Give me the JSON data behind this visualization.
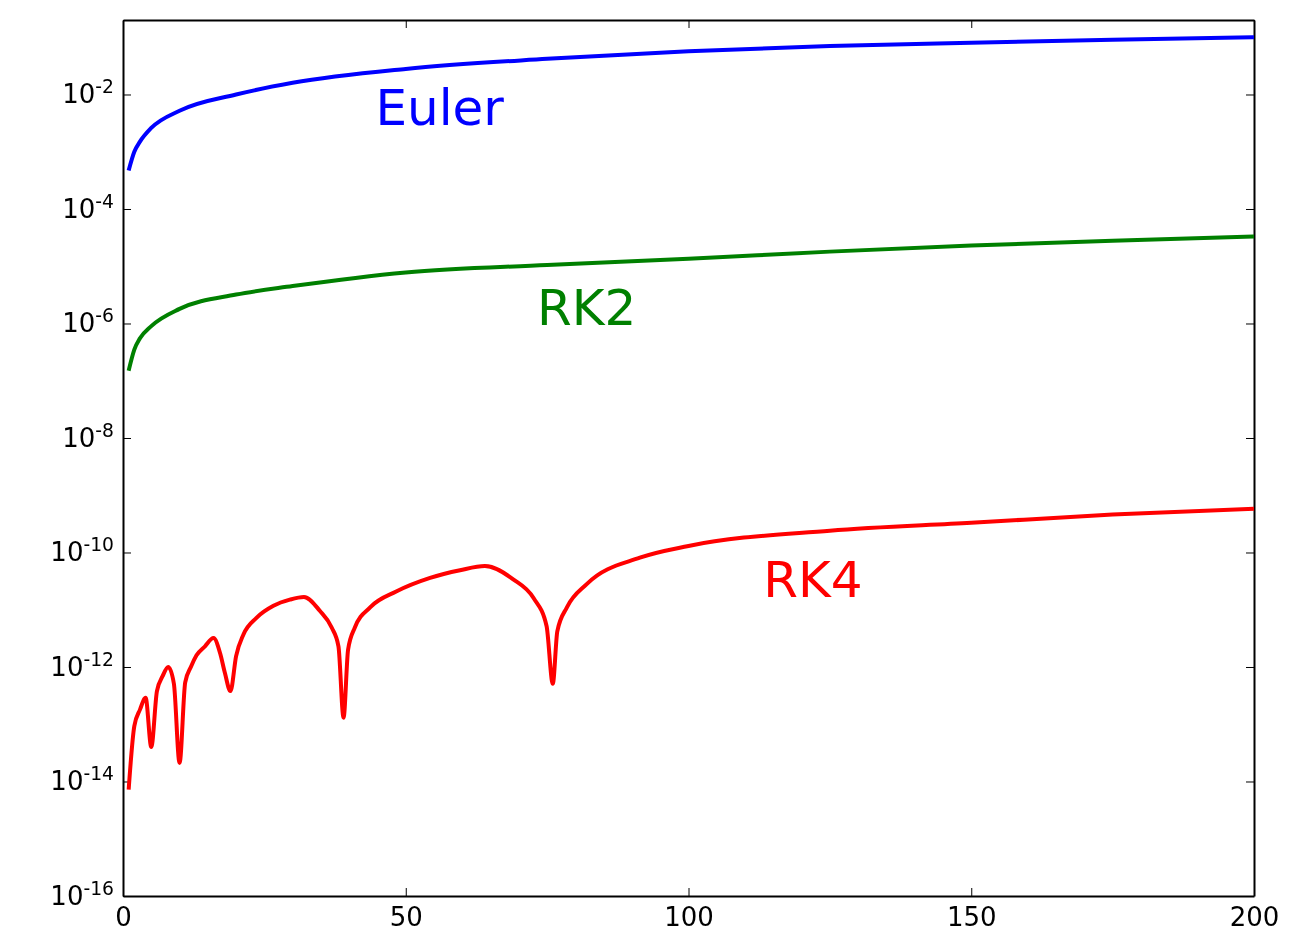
{
  "chart_data": {
    "type": "line",
    "log": "y",
    "xlim": [
      0,
      200
    ],
    "ylim": [
      1e-16,
      0.2
    ],
    "xticks": [
      0,
      50,
      100,
      150,
      200
    ],
    "yticks": [
      {
        "value": 1e-16,
        "label": "10$^{-16}$"
      },
      {
        "value": 1e-14,
        "label": "10$^{-14}$"
      },
      {
        "value": 1e-12,
        "label": "10$^{-12}$"
      },
      {
        "value": 1e-10,
        "label": "10$^{-10}$"
      },
      {
        "value": 1e-08,
        "label": "10$^{-8}$"
      },
      {
        "value": 1e-06,
        "label": "10$^{-6}$"
      },
      {
        "value": 0.0001,
        "label": "10$^{-4}$"
      },
      {
        "value": 0.01,
        "label": "10$^{-2}$"
      }
    ],
    "grid": false,
    "marker": "none",
    "line_style": "solid",
    "series": [
      {
        "name": "Euler",
        "color": "#0000ff",
        "x": [
          1,
          2,
          3,
          5,
          10,
          20,
          30,
          50,
          75,
          100,
          125,
          150,
          175,
          200
        ],
        "values": [
          0.00047,
          0.001,
          0.0015,
          0.0026,
          0.0052,
          0.01,
          0.016,
          0.028,
          0.042,
          0.057,
          0.07,
          0.08,
          0.09,
          0.1
        ]
      },
      {
        "name": "RK2",
        "color": "#008000",
        "x": [
          1,
          2,
          3,
          5,
          10,
          20,
          30,
          50,
          75,
          100,
          125,
          150,
          175,
          200
        ],
        "values": [
          1.5e-07,
          3.5e-07,
          5.5e-07,
          9e-07,
          1.8e-06,
          3.2e-06,
          4.5e-06,
          7.8e-06,
          1.05e-05,
          1.35e-05,
          1.8e-05,
          2.3e-05,
          2.8e-05,
          3.3e-05
        ]
      },
      {
        "name": "RK4",
        "color": "#ff0000",
        "x": [
          1,
          2,
          3,
          4,
          5,
          6,
          7,
          8,
          9,
          10,
          11,
          12,
          13,
          14.5,
          16,
          17.2,
          18,
          19,
          20,
          21.3,
          23.6,
          26.6,
          29.5,
          32,
          34.8,
          36.9,
          38.1,
          39,
          39.8,
          41,
          43.7,
          48.4,
          54.3,
          59.6,
          64,
          69,
          72.6,
          74.9,
          76,
          76.8,
          78.5,
          82,
          91.4,
          100,
          125,
          150,
          175,
          200
        ],
        "values": [
          7.2e-15,
          9.3e-14,
          1.8e-13,
          2.9e-13,
          4e-14,
          3.8e-13,
          6.9e-13,
          1e-12,
          5.1e-13,
          2.1e-14,
          5.4e-13,
          1e-12,
          1.6e-12,
          2.3e-12,
          3.2e-12,
          1.7e-12,
          8e-13,
          3.8e-13,
          1.55e-12,
          3.7e-12,
          7.2e-12,
          1.17e-11,
          1.5e-11,
          1.67e-11,
          9.6e-12,
          4.9e-12,
          2.3e-12,
          1.3e-13,
          2e-12,
          4.9e-12,
          1.1e-11,
          2.1e-11,
          3.6e-11,
          4.9e-11,
          5.8e-11,
          3.4e-11,
          1.6e-11,
          5.2e-12,
          5.1e-13,
          4.2e-12,
          1.1e-11,
          2.8e-11,
          8.1e-11,
          1.3e-10,
          2.4e-10,
          3.3e-10,
          4.6e-10,
          5.8e-10
        ]
      }
    ]
  }
}
